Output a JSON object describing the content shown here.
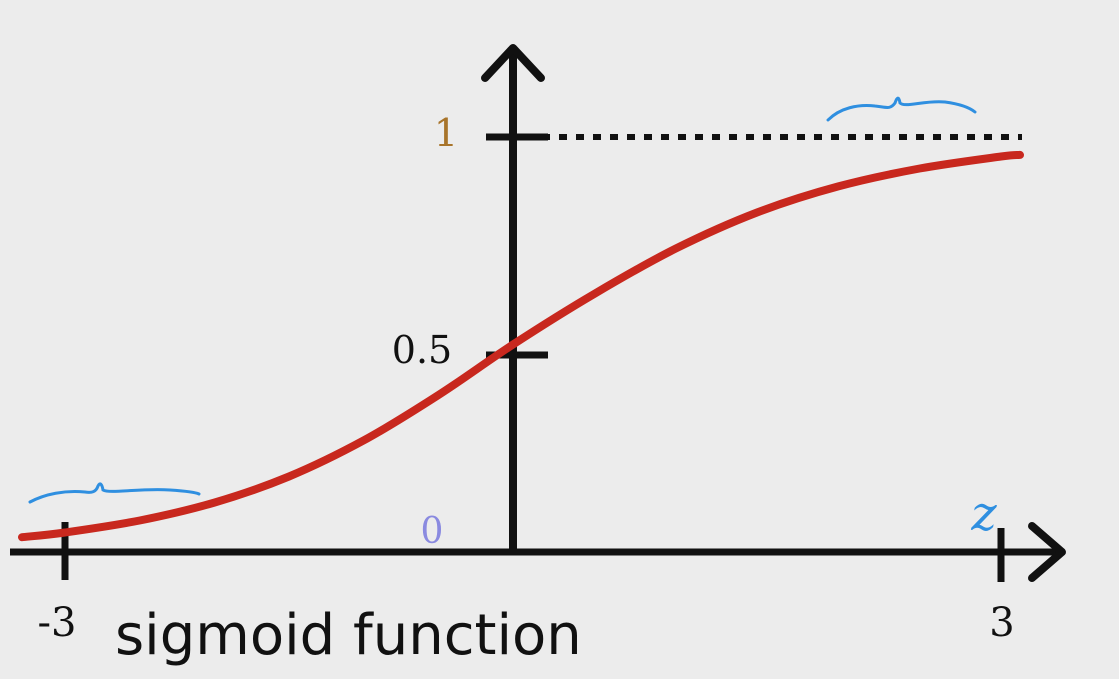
{
  "chart_data": {
    "type": "line",
    "title": "",
    "footer_caption": "sigmoid function",
    "xlabel": "z",
    "ylabel": "",
    "xlim": [
      -3,
      3
    ],
    "ylim": [
      0,
      1
    ],
    "x_tick_labels": [
      {
        "value": -3,
        "label": "-3"
      },
      {
        "value": 3,
        "label": "3"
      }
    ],
    "y_tick_labels": [
      {
        "value": 0,
        "label": "0"
      },
      {
        "value": 0.5,
        "label": "0.5"
      },
      {
        "value": 1,
        "label": "1"
      }
    ],
    "asymptote": {
      "y": 1,
      "style": "dotted"
    },
    "series": [
      {
        "x": [
          -3.0,
          -2.5,
          -2.0,
          -1.5,
          -1.0,
          -0.5,
          0.0,
          0.5,
          1.0,
          1.5,
          2.0,
          2.5,
          3.0
        ],
        "y": [
          0.047,
          0.076,
          0.119,
          0.182,
          0.269,
          0.378,
          0.5,
          0.622,
          0.731,
          0.818,
          0.881,
          0.924,
          0.953
        ]
      }
    ],
    "grid": false,
    "legend": "none",
    "colors": {
      "curve": "#c8281e",
      "axes": "#111111",
      "tick_label_1": "#a8742a",
      "tick_label_0": "#8a8ae0",
      "z_label": "#2f8fe0",
      "annotation": "#2f8fe0"
    }
  }
}
